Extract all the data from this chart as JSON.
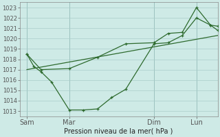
{
  "background_color": "#ceeae6",
  "line_color": "#2d6a2d",
  "grid_color": "#aaccca",
  "xlabel": "Pression niveau de la mer( hPa )",
  "ylim": [
    1012.5,
    1023.5
  ],
  "yticks": [
    1013,
    1014,
    1015,
    1016,
    1017,
    1018,
    1019,
    1020,
    1021,
    1022,
    1023
  ],
  "x_tick_labels": [
    "Sam",
    "Mar",
    "Dim",
    "Lun"
  ],
  "x_tick_positions": [
    2,
    14,
    38,
    50
  ],
  "x_vline_positions": [
    2,
    14,
    38,
    50
  ],
  "xlim": [
    0,
    56
  ],
  "series1_zigzag": {
    "x": [
      2,
      4,
      6,
      9,
      14,
      18,
      22,
      26,
      30,
      38,
      42,
      46,
      50,
      54,
      56
    ],
    "y": [
      1018.5,
      1017.3,
      1016.8,
      1015.8,
      1013.1,
      1013.1,
      1013.2,
      1014.3,
      1015.1,
      1019.5,
      1019.6,
      1020.3,
      1022.0,
      1021.3,
      1021.2
    ]
  },
  "series2_upper": {
    "x": [
      2,
      6,
      14,
      22,
      30,
      38,
      42,
      46,
      50,
      54,
      56
    ],
    "y": [
      1018.5,
      1017.0,
      1017.1,
      1018.2,
      1019.5,
      1019.6,
      1020.5,
      1020.6,
      1023.0,
      1021.3,
      1020.8
    ]
  },
  "series3_straight": {
    "x": [
      2,
      56
    ],
    "y": [
      1017.0,
      1020.3
    ]
  }
}
